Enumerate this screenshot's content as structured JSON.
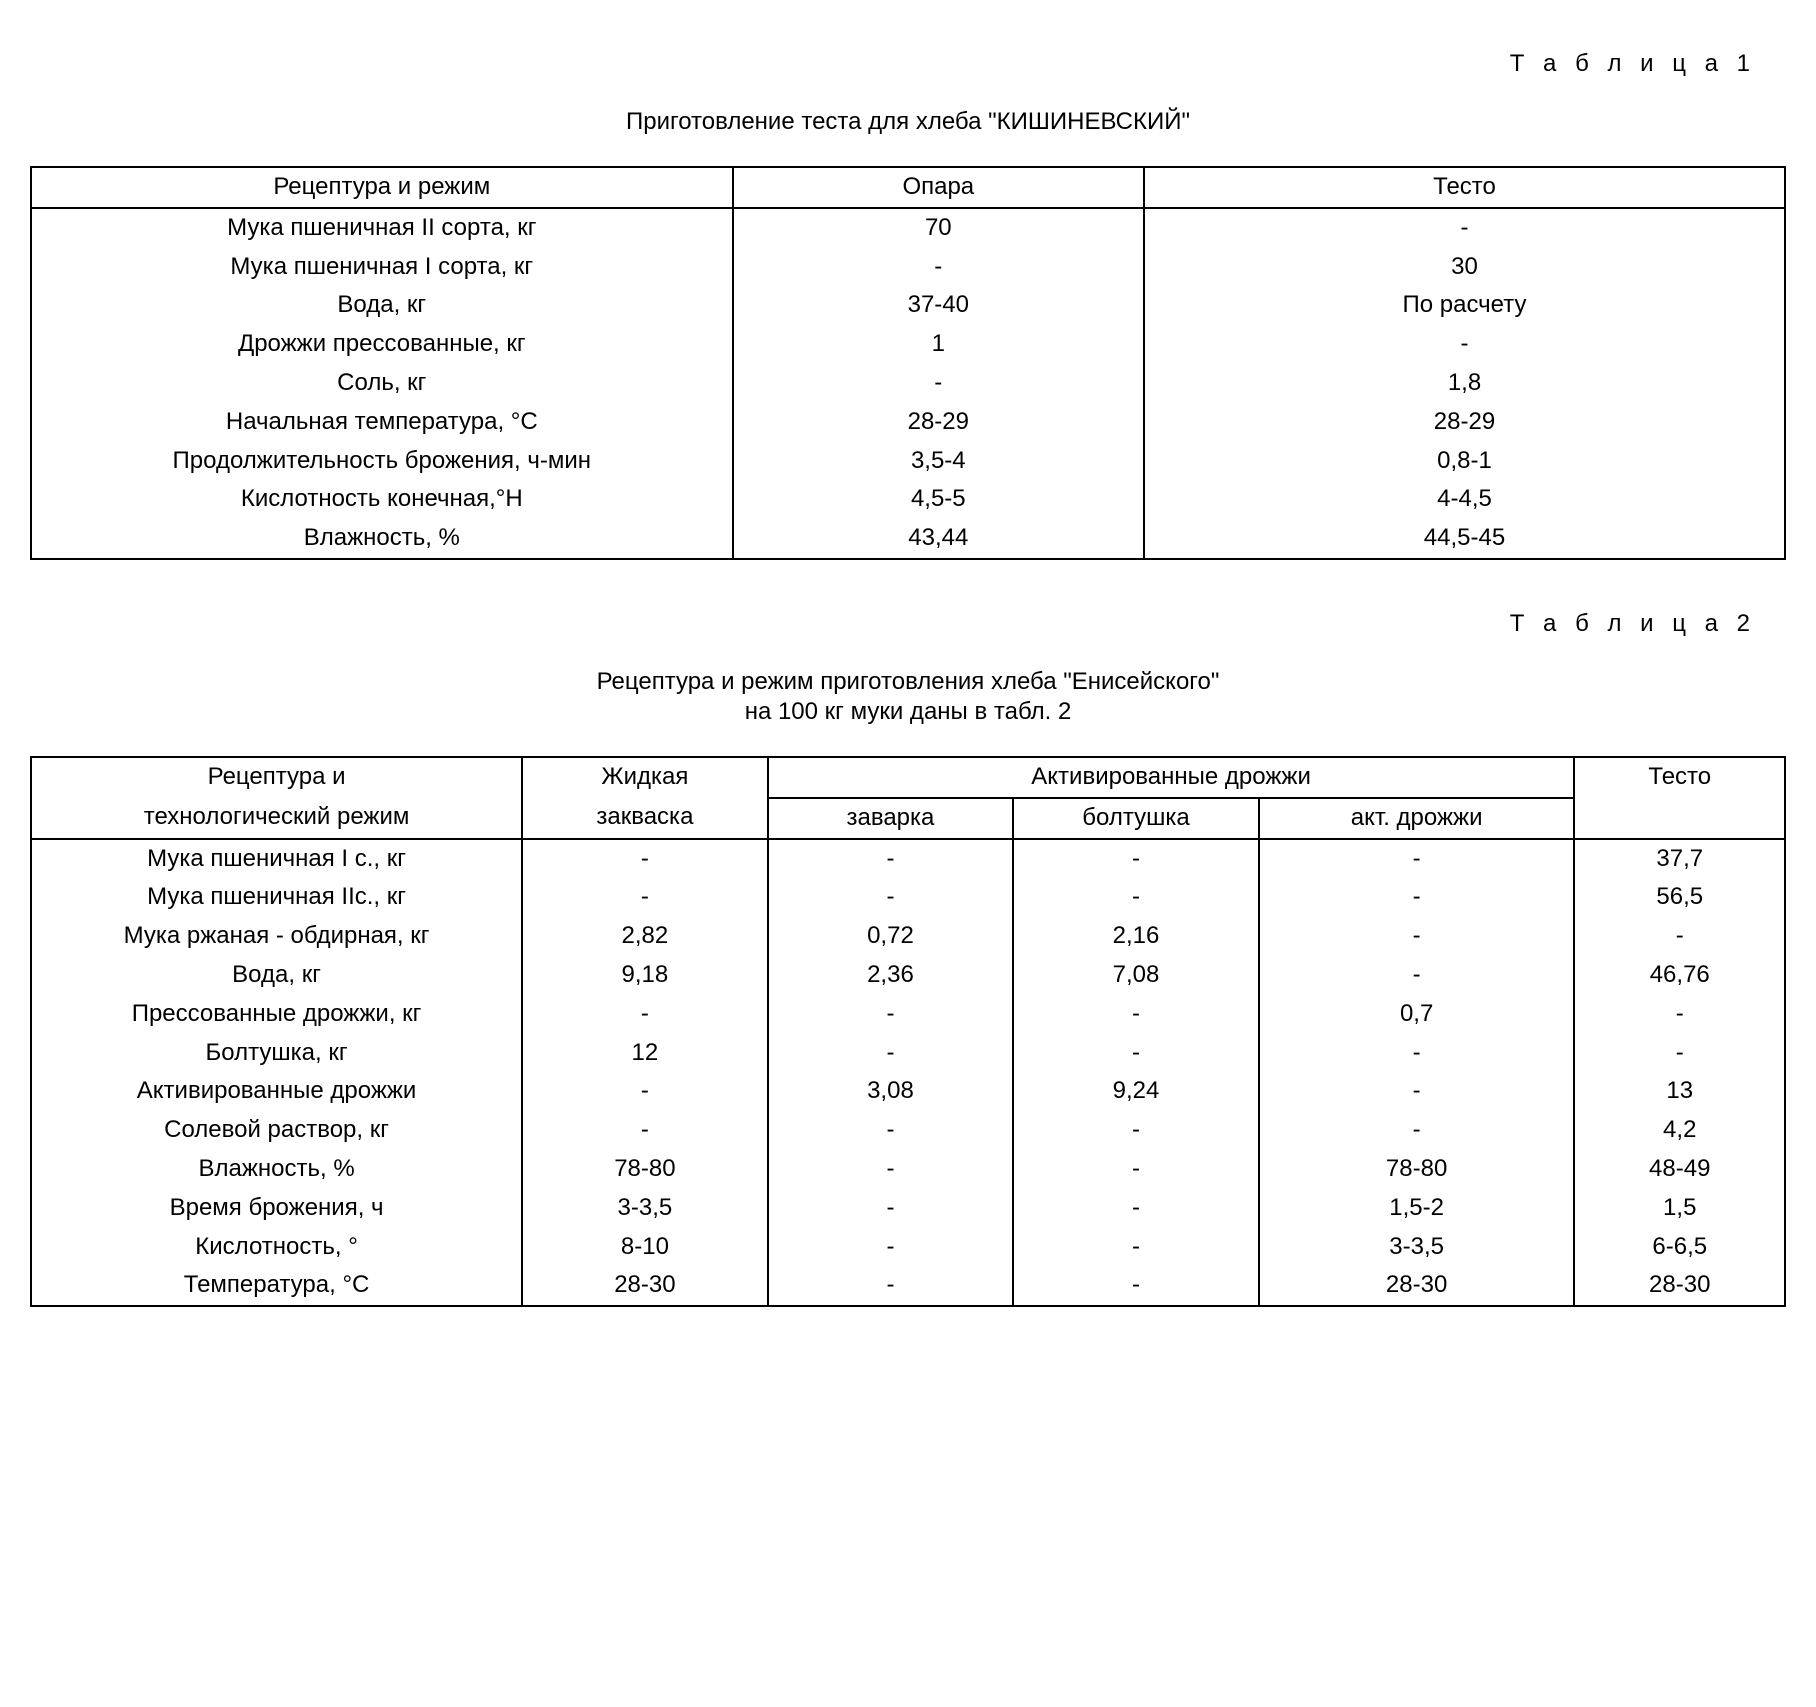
{
  "table1": {
    "label": "Т а б л и ц а 1",
    "caption": "Приготовление теста для хлеба \"КИШИНЕВСКИЙ\"",
    "headers": [
      "Рецептура и режим",
      "Опара",
      "Тесто"
    ],
    "rows": [
      [
        "Мука пшеничная II сорта, кг",
        "70",
        "-"
      ],
      [
        "Мука пшеничная I сорта, кг",
        "-",
        "30"
      ],
      [
        "Вода, кг",
        "37-40",
        "По расчету"
      ],
      [
        "Дрожжи прессованные, кг",
        "1",
        "-"
      ],
      [
        "Соль, кг",
        "-",
        "1,8"
      ],
      [
        "Начальная температура, °С",
        "28-29",
        "28-29"
      ],
      [
        "Продолжительность брожения, ч-мин",
        "3,5-4",
        "0,8-1"
      ],
      [
        "Кислотность конечная,°Н",
        "4,5-5",
        "4-4,5"
      ],
      [
        "Влажность, %",
        "43,44",
        "44,5-45"
      ]
    ]
  },
  "table2": {
    "label": "Т а б л и ц а 2",
    "caption_line1": "Рецептура и режим приготовления хлеба \"Енисейского\"",
    "caption_line2": "на 100 кг муки даны в табл. 2",
    "header_row1_col1": "Рецептура и",
    "header_row2_col1": "технологический режим",
    "header_row1_col2": "Жидкая",
    "header_row2_col2": "закваска",
    "header_group": "Активированные дрожжи",
    "header_sub": [
      "заварка",
      "болтушка",
      "акт. дрожжи"
    ],
    "header_last": "Тесто",
    "rows": [
      [
        "Мука пшеничная I с., кг",
        "-",
        "-",
        "-",
        "-",
        "37,7"
      ],
      [
        "Мука пшеничная IIс., кг",
        "-",
        "-",
        "-",
        "-",
        "56,5"
      ],
      [
        "Мука ржаная - обдирная, кг",
        "2,82",
        "0,72",
        "2,16",
        "-",
        "-"
      ],
      [
        "Вода, кг",
        "9,18",
        "2,36",
        "7,08",
        "-",
        "46,76"
      ],
      [
        "Прессованные дрожжи, кг",
        "-",
        "-",
        "-",
        "0,7",
        "-"
      ],
      [
        "Болтушка, кг",
        "12",
        "-",
        "-",
        "-",
        "-"
      ],
      [
        "Активированные дрожжи",
        "-",
        "3,08",
        "9,24",
        "-",
        "13"
      ],
      [
        "Солевой раствор, кг",
        "-",
        "-",
        "-",
        "-",
        "4,2"
      ],
      [
        "Влажность, %",
        "78-80",
        "-",
        "-",
        "78-80",
        "48-49"
      ],
      [
        "Время брожения, ч",
        "3-3,5",
        "-",
        "-",
        "1,5-2",
        "1,5"
      ],
      [
        "Кислотность, °",
        "8-10",
        "-",
        "-",
        "3-3,5",
        "6-6,5"
      ],
      [
        "Температура, °С",
        "28-30",
        "-",
        "-",
        "28-30",
        "28-30"
      ]
    ]
  }
}
